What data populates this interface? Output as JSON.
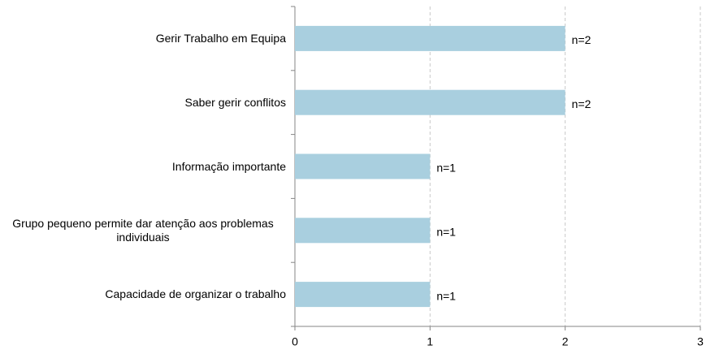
{
  "chart_data": {
    "type": "bar",
    "orientation": "horizontal",
    "categories": [
      "Gerir Trabalho em Equipa",
      "Saber gerir conflitos",
      "Informação importante",
      "Grupo pequeno permite dar atenção aos problemas individuais",
      "Capacidade de organizar o trabalho"
    ],
    "values": [
      2,
      2,
      1,
      1,
      1
    ],
    "value_labels": [
      "n=2",
      "n=2",
      "n=1",
      "n=1",
      "n=1"
    ],
    "color": "#a9cfdf",
    "xlim": [
      0,
      3
    ],
    "xticks": [
      0,
      1,
      2,
      3
    ],
    "grid": true
  }
}
